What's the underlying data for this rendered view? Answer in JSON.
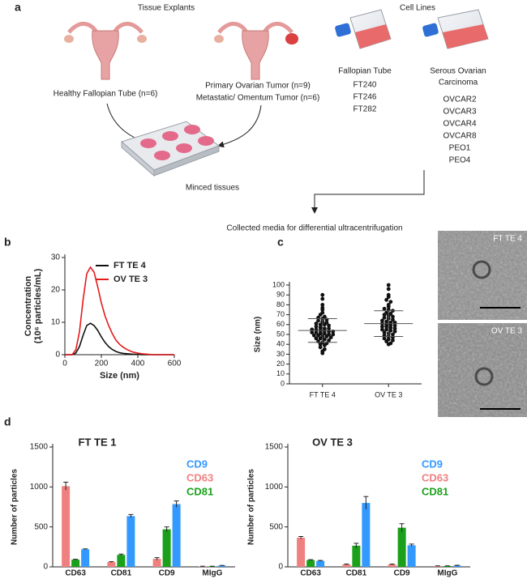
{
  "panel_a": {
    "label": "a",
    "tissue_title": "Tissue Explants",
    "cell_title": "Cell Lines",
    "healthy": "Healthy Fallopian Tube (n=6)",
    "tumor": [
      "Primary Ovarian Tumor (n=9)",
      "Metastatic/ Omentum Tumor (n=6)"
    ],
    "minced": "Minced tissues",
    "fallopian_title": "Fallopian Tube",
    "fallopian_lines": [
      "FT240",
      "FT246",
      "FT282"
    ],
    "serous_title": [
      "Serous Ovarian",
      "Carcinoma"
    ],
    "serous_lines": [
      "OVCAR2",
      "OVCAR3",
      "OVCAR4",
      "OVCAR8",
      "PEO1",
      "PEO4"
    ],
    "collected": "Collected media for differential ultracentrifugation"
  },
  "micrographs": [
    "FT TE 4",
    "OV TE 3"
  ],
  "chart_data": [
    {
      "type": "line",
      "label": "b",
      "xlabel": "Size (nm)",
      "ylabel": [
        "Concentration",
        "(10⁶ particles/mL)"
      ],
      "x": [
        0,
        20,
        40,
        60,
        80,
        100,
        120,
        140,
        160,
        180,
        200,
        220,
        240,
        260,
        280,
        300,
        320,
        340,
        360,
        380,
        400,
        420,
        440,
        460,
        480,
        500,
        520,
        540,
        560,
        580,
        600
      ],
      "series": [
        {
          "name": "FT TE 4",
          "color": "#111111",
          "values": [
            0,
            0,
            0,
            0.5,
            2.5,
            6,
            9,
            9.7,
            9,
            7.5,
            5.5,
            3.8,
            2.5,
            1.6,
            1,
            0.6,
            0.4,
            0.3,
            0.2,
            0.1,
            0.1,
            0,
            0,
            0,
            0,
            0,
            0,
            0,
            0,
            0,
            0
          ]
        },
        {
          "name": "OV TE 3",
          "color": "#e41a1c",
          "values": [
            0,
            0,
            0,
            1.5,
            7,
            17,
            25,
            27,
            25.5,
            21,
            16,
            12,
            9,
            6.5,
            4.5,
            3.2,
            2.3,
            1.6,
            1.1,
            0.7,
            0.5,
            0.3,
            0.2,
            0.1,
            0,
            0,
            0,
            0,
            0,
            0,
            0
          ]
        }
      ],
      "xlim": [
        0,
        600
      ],
      "xticks": [
        0,
        200,
        400,
        600
      ],
      "ylim": [
        0,
        30
      ],
      "yticks": [
        0,
        10,
        20,
        30
      ],
      "legend": "upper right"
    },
    {
      "type": "dot",
      "label": "c",
      "ylabel": "Size (nm)",
      "categories": [
        "FT TE 4",
        "OV TE 3"
      ],
      "points": [
        [
          90,
          86,
          80,
          77,
          75,
          72,
          70,
          68,
          67,
          66,
          65,
          64,
          63,
          62,
          61,
          60,
          60,
          59,
          58,
          57,
          56,
          56,
          55,
          55,
          54,
          54,
          53,
          53,
          52,
          52,
          51,
          51,
          50,
          50,
          49,
          49,
          48,
          48,
          47,
          46,
          46,
          45,
          44,
          43,
          42,
          41,
          40,
          39,
          37,
          35,
          33,
          31
        ],
        [
          100,
          96,
          90,
          88,
          85,
          83,
          80,
          78,
          76,
          75,
          74,
          72,
          71,
          70,
          69,
          68,
          67,
          66,
          65,
          64,
          63,
          62,
          62,
          61,
          60,
          60,
          59,
          58,
          58,
          57,
          56,
          55,
          55,
          54,
          53,
          52,
          51,
          50,
          49,
          48,
          47,
          46,
          45,
          44,
          43,
          41,
          40
        ]
      ],
      "means": [
        54,
        61
      ],
      "sd": [
        12,
        13
      ],
      "color": "#111111",
      "ylim": [
        0,
        100
      ],
      "yticks": [
        0,
        10,
        20,
        30,
        40,
        50,
        60,
        70,
        80,
        90,
        100
      ]
    },
    {
      "type": "grouped_bar",
      "label": "d",
      "title": "FT TE 1",
      "ylabel": "Number of particles",
      "categories": [
        "CD63",
        "CD81",
        "CD9",
        "MIgG"
      ],
      "series": [
        {
          "name": "CD63",
          "color": "#f08080",
          "values": [
            1010,
            60,
            100,
            5
          ],
          "errors": [
            50,
            5,
            15,
            3
          ]
        },
        {
          "name": "CD81",
          "color": "#1aa01a",
          "values": [
            90,
            150,
            470,
            5
          ],
          "errors": [
            5,
            10,
            30,
            3
          ]
        },
        {
          "name": "CD9",
          "color": "#3399ff",
          "values": [
            220,
            635,
            785,
            15
          ],
          "errors": [
            5,
            20,
            40,
            3
          ]
        }
      ],
      "ylim": [
        0,
        1500
      ],
      "yticks": [
        0,
        500,
        1000,
        1500
      ],
      "legend": "upper right"
    },
    {
      "type": "grouped_bar",
      "title": "OV  TE 3",
      "ylabel": "Number of particles",
      "categories": [
        "CD63",
        "CD81",
        "CD9",
        "MIgG"
      ],
      "series": [
        {
          "name": "CD63",
          "color": "#f08080",
          "values": [
            365,
            30,
            30,
            10
          ],
          "errors": [
            15,
            5,
            5,
            3
          ]
        },
        {
          "name": "CD81",
          "color": "#1aa01a",
          "values": [
            85,
            265,
            490,
            10
          ],
          "errors": [
            5,
            30,
            50,
            3
          ]
        },
        {
          "name": "CD9",
          "color": "#3399ff",
          "values": [
            75,
            800,
            270,
            15
          ],
          "errors": [
            5,
            80,
            15,
            5
          ]
        }
      ],
      "ylim": [
        0,
        1500
      ],
      "yticks": [
        0,
        500,
        1000,
        1500
      ],
      "legend": "upper right"
    }
  ]
}
